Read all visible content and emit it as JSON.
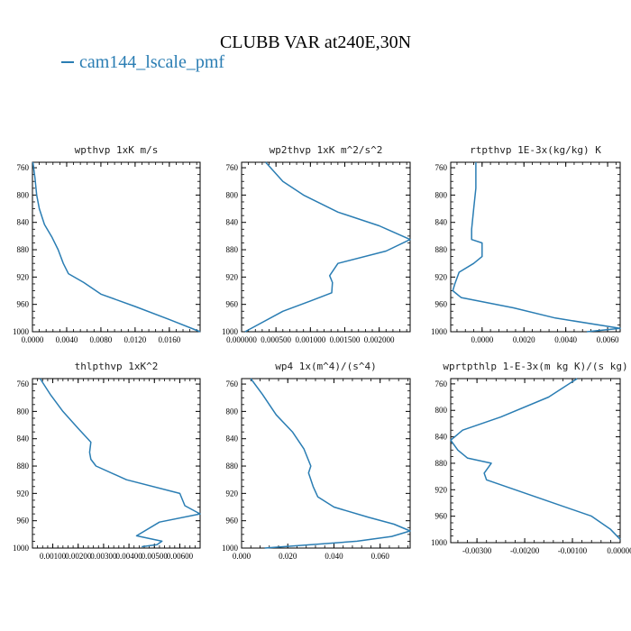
{
  "title": "CLUBB VAR at240E,30N",
  "legend": {
    "label": "cam144_lscale_pmf",
    "color": "#2a7db3"
  },
  "chart_data": [
    {
      "type": "line",
      "title": "wpthvp  1xK m/s",
      "xlim": [
        0,
        0.0196
      ],
      "ylim": [
        1000,
        752
      ],
      "xticks": [
        "0.0000",
        "0.0040",
        "0.0080",
        "0.0120",
        "0.0160"
      ],
      "xtick_values": [
        0,
        0.004,
        0.008,
        0.012,
        0.016
      ],
      "yticks": [
        "760",
        "800",
        "840",
        "880",
        "920",
        "960",
        "1000"
      ],
      "series": [
        {
          "x": [
            5e-05,
            0.0003,
            0.0005,
            0.0008,
            0.0014,
            0.0023,
            0.003,
            0.0036,
            0.0042,
            0.006,
            0.008,
            0.012,
            0.016,
            0.0196
          ],
          "y": [
            752,
            775,
            800,
            820,
            843,
            862,
            880,
            900,
            915,
            928,
            945,
            963,
            982,
            1000
          ]
        }
      ]
    },
    {
      "type": "line",
      "title": "wp2thvp  1xK m^2/s^2",
      "xlim": [
        0,
        0.00245
      ],
      "ylim": [
        1000,
        752
      ],
      "xticks": [
        "0.000000",
        "0.000500",
        "0.001000",
        "0.001500",
        "0.002000"
      ],
      "xtick_values": [
        0,
        0.0005,
        0.001,
        0.0015,
        0.002
      ],
      "yticks": [
        "760",
        "800",
        "840",
        "880",
        "920",
        "960",
        "1000"
      ],
      "series": [
        {
          "x": [
            0.00035,
            0.0006,
            0.0009,
            0.0014,
            0.002,
            0.00245,
            0.0021,
            0.0014,
            0.00128,
            0.00132,
            0.00131,
            0.001,
            0.0006,
            5e-05
          ],
          "y": [
            752,
            780,
            800,
            825,
            845,
            865,
            882,
            900,
            918,
            928,
            943,
            955,
            970,
            1000
          ]
        }
      ]
    },
    {
      "type": "line",
      "title": "rtpthvp  1E-3x(kg/kg) K",
      "xlim": [
        -0.0015,
        0.0066
      ],
      "ylim": [
        1000,
        752
      ],
      "xticks": [
        "0.0000",
        "0.0020",
        "0.0040",
        "0.0060"
      ],
      "xtick_values": [
        0,
        0.002,
        0.004,
        0.006
      ],
      "yticks": [
        "760",
        "800",
        "840",
        "880",
        "920",
        "960",
        "1000"
      ],
      "series": [
        {
          "x": [
            -0.0003,
            -0.0003,
            -0.0004,
            -0.0005,
            -0.0005,
            0.0,
            0.0,
            -0.0004,
            -0.0011,
            -0.0013,
            -0.0014,
            -0.001,
            0.0015,
            0.0035,
            0.0066,
            0.005
          ],
          "y": [
            752,
            790,
            820,
            850,
            865,
            870,
            890,
            900,
            913,
            930,
            940,
            950,
            965,
            980,
            995,
            1000
          ]
        }
      ]
    },
    {
      "type": "line",
      "title": "thlpthvp  1xK^2",
      "xlim": [
        0.0002,
        0.0068
      ],
      "ylim": [
        1000,
        752
      ],
      "xticks": [
        "0.00100",
        "0.00200",
        "0.00300",
        "0.00400",
        "0.00500",
        "0.00600"
      ],
      "xtick_values": [
        0.001,
        0.002,
        0.003,
        0.004,
        0.005,
        0.006
      ],
      "yticks": [
        "760",
        "800",
        "840",
        "880",
        "920",
        "960",
        "1000"
      ],
      "series": [
        {
          "x": [
            0.0005,
            0.0009,
            0.0014,
            0.002,
            0.0025,
            0.00245,
            0.0025,
            0.0027,
            0.0039,
            0.006,
            0.0062,
            0.0068,
            0.0052,
            0.0043,
            0.0053,
            0.0051,
            0.0045
          ],
          "y": [
            752,
            775,
            800,
            825,
            845,
            860,
            870,
            880,
            900,
            920,
            938,
            950,
            962,
            982,
            990,
            995,
            998
          ]
        }
      ]
    },
    {
      "type": "line",
      "title": "wp4  1x(m^4)/(s^4)",
      "xlim": [
        0,
        0.073
      ],
      "ylim": [
        1000,
        752
      ],
      "xticks": [
        "0.000",
        "0.020",
        "0.040",
        "0.060"
      ],
      "xtick_values": [
        0,
        0.02,
        0.04,
        0.06
      ],
      "yticks": [
        "760",
        "800",
        "840",
        "880",
        "920",
        "960",
        "1000"
      ],
      "series": [
        {
          "x": [
            0.004,
            0.009,
            0.015,
            0.022,
            0.027,
            0.03,
            0.029,
            0.031,
            0.033,
            0.04,
            0.055,
            0.066,
            0.073,
            0.065,
            0.05,
            0.03,
            0.01
          ],
          "y": [
            752,
            775,
            805,
            830,
            855,
            880,
            890,
            910,
            925,
            940,
            955,
            965,
            975,
            983,
            990,
            995,
            1000
          ]
        }
      ]
    },
    {
      "type": "line",
      "title": "wprtpthlp  1-E-3x(m kg K)/(s kg)",
      "xlim": [
        -0.00355,
        0.0
      ],
      "ylim": [
        1000,
        752
      ],
      "xticks": [
        "-0.00300",
        "-0.00200",
        "-0.00100",
        "0.00000"
      ],
      "xtick_values": [
        -0.003,
        -0.002,
        -0.001,
        0
      ],
      "yticks": [
        "760",
        "800",
        "840",
        "880",
        "920",
        "960",
        "1000"
      ],
      "series": [
        {
          "x": [
            -0.0009,
            -0.0015,
            -0.0025,
            -0.0033,
            -0.00355,
            -0.0034,
            -0.0032,
            -0.0027,
            -0.00285,
            -0.0028,
            -0.0016,
            -0.0006,
            -0.0002,
            0.0
          ],
          "y": [
            752,
            780,
            810,
            830,
            845,
            860,
            872,
            880,
            895,
            905,
            935,
            960,
            980,
            995
          ]
        }
      ]
    }
  ]
}
